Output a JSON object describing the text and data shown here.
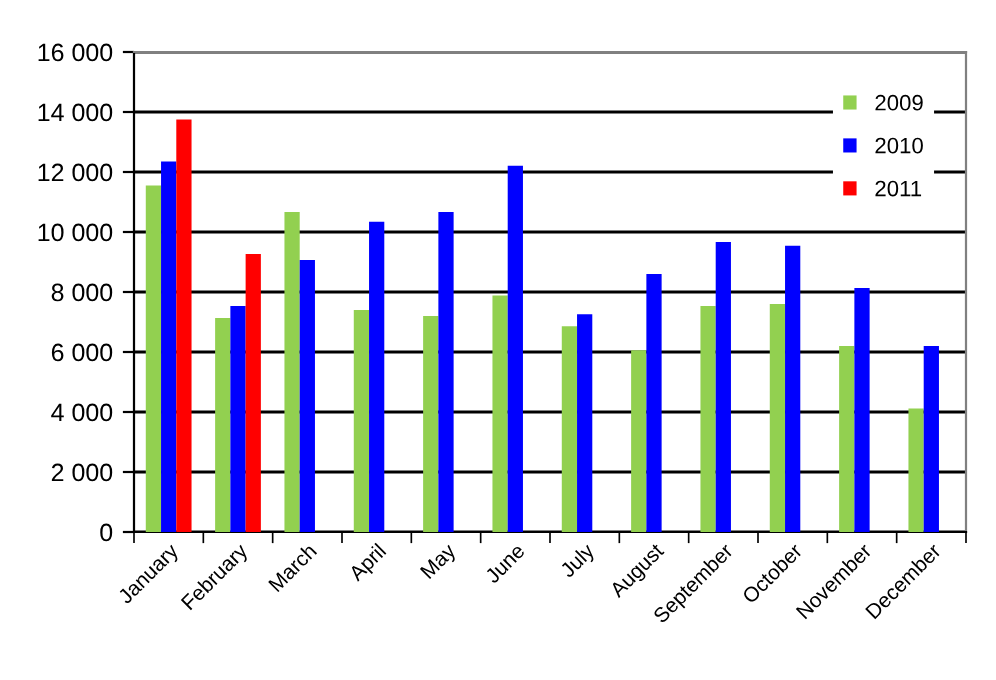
{
  "chart_data": {
    "type": "bar",
    "categories": [
      "January",
      "February",
      "March",
      "April",
      "May",
      "June",
      "July",
      "August",
      "September",
      "October",
      "November",
      "December"
    ],
    "series": [
      {
        "name": "2009",
        "color": "#92d050",
        "values": [
          11550,
          7130,
          10670,
          7400,
          7200,
          7880,
          6860,
          6060,
          7530,
          7600,
          6200,
          4120
        ]
      },
      {
        "name": "2010",
        "color": "#0000ff",
        "values": [
          12350,
          7530,
          9070,
          10340,
          10670,
          12210,
          7260,
          8600,
          9670,
          9540,
          8130,
          6200
        ]
      },
      {
        "name": "2011",
        "color": "#ff0000",
        "values": [
          13750,
          9270,
          null,
          null,
          null,
          null,
          null,
          null,
          null,
          null,
          null,
          null
        ]
      }
    ],
    "ylim": [
      0,
      16000
    ],
    "yticks": [
      {
        "value": 0,
        "label": "0"
      },
      {
        "value": 2000,
        "label": "2 000"
      },
      {
        "value": 4000,
        "label": "4 000"
      },
      {
        "value": 6000,
        "label": "6 000"
      },
      {
        "value": 8000,
        "label": "8 000"
      },
      {
        "value": 10000,
        "label": "10 000"
      },
      {
        "value": 12000,
        "label": "12 000"
      },
      {
        "value": 14000,
        "label": "14 000"
      },
      {
        "value": 16000,
        "label": "16 000"
      }
    ],
    "grid": "y",
    "legend": "top right"
  }
}
